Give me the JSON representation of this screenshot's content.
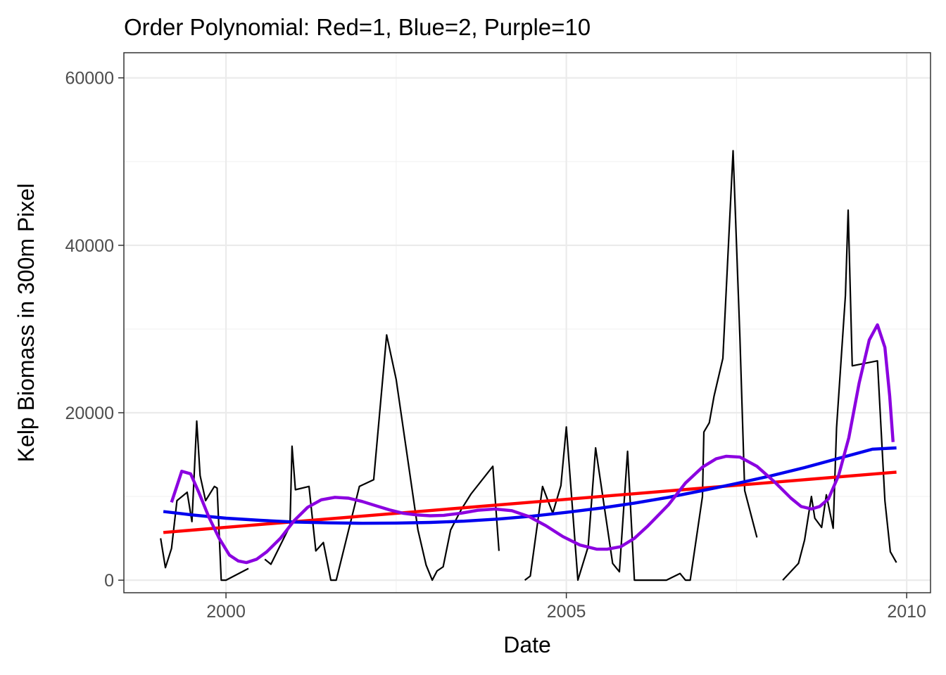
{
  "chart_data": {
    "type": "line",
    "title": "Order Polynomial: Red=1, Blue=2, Purple=10",
    "xlabel": "Date",
    "ylabel": "Kelp Biomass in 300m Pixel",
    "xlim": [
      1998.5,
      2010.35
    ],
    "ylim": [
      -1500,
      63000
    ],
    "x_ticks": [
      2000,
      2005,
      2010
    ],
    "x_tick_labels": [
      "2000",
      "2005",
      "2010"
    ],
    "y_ticks": [
      0,
      20000,
      40000,
      60000
    ],
    "y_tick_labels": [
      "0",
      "20000",
      "40000",
      "60000"
    ],
    "grid": true,
    "legend": "none",
    "series": [
      {
        "kind": "observed",
        "color": "#000000",
        "segments": [
          [
            [
              1999.04,
              5000
            ],
            [
              1999.11,
              1500
            ],
            [
              1999.2,
              3800
            ],
            [
              1999.28,
              9500
            ],
            [
              1999.43,
              10500
            ],
            [
              1999.5,
              7000
            ],
            [
              1999.57,
              19000
            ],
            [
              1999.62,
              12500
            ],
            [
              1999.7,
              9500
            ],
            [
              1999.83,
              11200
            ],
            [
              1999.87,
              11000
            ],
            [
              1999.93,
              0
            ],
            [
              2000.0,
              0
            ],
            [
              2000.33,
              1400
            ]
          ],
          [
            [
              2000.57,
              2500
            ],
            [
              2000.66,
              1900
            ],
            [
              2000.94,
              6500
            ],
            [
              2000.97,
              16000
            ],
            [
              2001.02,
              10800
            ],
            [
              2001.22,
              11200
            ],
            [
              2001.32,
              3500
            ],
            [
              2001.43,
              4500
            ],
            [
              2001.54,
              0
            ],
            [
              2001.62,
              0
            ],
            [
              2001.96,
              11200
            ],
            [
              2002.17,
              12000
            ],
            [
              2002.36,
              29300
            ],
            [
              2002.5,
              24000
            ],
            [
              2002.82,
              6000
            ],
            [
              2002.94,
              1800
            ],
            [
              2003.03,
              0
            ],
            [
              2003.1,
              1100
            ],
            [
              2003.19,
              1600
            ],
            [
              2003.3,
              6000
            ],
            [
              2003.46,
              8500
            ],
            [
              2003.6,
              10300
            ],
            [
              2003.92,
              13600
            ],
            [
              2004.01,
              3500
            ]
          ],
          [
            [
              2004.39,
              0
            ],
            [
              2004.47,
              500
            ],
            [
              2004.65,
              11200
            ],
            [
              2004.8,
              8000
            ],
            [
              2004.92,
              11300
            ],
            [
              2005.0,
              18300
            ],
            [
              2005.17,
              0
            ],
            [
              2005.32,
              4000
            ],
            [
              2005.43,
              15800
            ],
            [
              2005.68,
              2000
            ],
            [
              2005.78,
              1000
            ],
            [
              2005.9,
              15400
            ],
            [
              2006.0,
              0
            ],
            [
              2006.47,
              0
            ],
            [
              2006.67,
              800
            ],
            [
              2006.75,
              0
            ],
            [
              2006.82,
              0
            ],
            [
              2007.0,
              10000
            ],
            [
              2007.02,
              17700
            ],
            [
              2007.1,
              18800
            ],
            [
              2007.17,
              22000
            ],
            [
              2007.3,
              26500
            ],
            [
              2007.45,
              51300
            ],
            [
              2007.55,
              29000
            ],
            [
              2007.62,
              10700
            ],
            [
              2007.8,
              5100
            ]
          ],
          [
            [
              2008.18,
              0
            ],
            [
              2008.41,
              2000
            ],
            [
              2008.5,
              4800
            ],
            [
              2008.6,
              10000
            ],
            [
              2008.65,
              7400
            ],
            [
              2008.75,
              6300
            ],
            [
              2008.82,
              10200
            ],
            [
              2008.92,
              6200
            ],
            [
              2008.97,
              18200
            ],
            [
              2009.1,
              34000
            ],
            [
              2009.14,
              44200
            ],
            [
              2009.2,
              25600
            ],
            [
              2009.57,
              26200
            ],
            [
              2009.68,
              9500
            ],
            [
              2009.76,
              3400
            ],
            [
              2009.85,
              2100
            ]
          ]
        ]
      },
      {
        "kind": "fit",
        "order": 1,
        "color": "#ff0000",
        "points": [
          [
            1999.08,
            5700
          ],
          [
            2009.85,
            12900
          ]
        ]
      },
      {
        "kind": "fit",
        "order": 2,
        "color": "#0000ee",
        "points": [
          [
            1999.08,
            8200
          ],
          [
            1999.5,
            7800
          ],
          [
            2000.0,
            7400
          ],
          [
            2000.5,
            7150
          ],
          [
            2001.0,
            6950
          ],
          [
            2001.5,
            6850
          ],
          [
            2002.0,
            6800
          ],
          [
            2002.5,
            6820
          ],
          [
            2003.0,
            6900
          ],
          [
            2003.5,
            7050
          ],
          [
            2004.0,
            7300
          ],
          [
            2004.5,
            7650
          ],
          [
            2005.0,
            8100
          ],
          [
            2005.5,
            8600
          ],
          [
            2006.0,
            9200
          ],
          [
            2006.5,
            9900
          ],
          [
            2007.0,
            10700
          ],
          [
            2007.5,
            11550
          ],
          [
            2008.0,
            12450
          ],
          [
            2008.5,
            13450
          ],
          [
            2009.0,
            14550
          ],
          [
            2009.5,
            15650
          ],
          [
            2009.85,
            15800
          ]
        ]
      },
      {
        "kind": "fit",
        "order": 10,
        "color": "#8b00e0",
        "points": [
          [
            1999.2,
            9300
          ],
          [
            1999.35,
            13000
          ],
          [
            1999.48,
            12700
          ],
          [
            1999.6,
            10500
          ],
          [
            1999.75,
            7500
          ],
          [
            1999.9,
            5000
          ],
          [
            2000.05,
            3000
          ],
          [
            2000.18,
            2300
          ],
          [
            2000.3,
            2100
          ],
          [
            2000.45,
            2500
          ],
          [
            2000.6,
            3400
          ],
          [
            2000.8,
            5000
          ],
          [
            2001.0,
            7100
          ],
          [
            2001.2,
            8700
          ],
          [
            2001.4,
            9600
          ],
          [
            2001.6,
            9900
          ],
          [
            2001.8,
            9800
          ],
          [
            2002.0,
            9400
          ],
          [
            2002.2,
            8900
          ],
          [
            2002.4,
            8400
          ],
          [
            2002.6,
            8000
          ],
          [
            2002.8,
            7800
          ],
          [
            2003.0,
            7700
          ],
          [
            2003.2,
            7750
          ],
          [
            2003.45,
            8000
          ],
          [
            2003.7,
            8350
          ],
          [
            2003.95,
            8500
          ],
          [
            2004.2,
            8300
          ],
          [
            2004.45,
            7600
          ],
          [
            2004.7,
            6500
          ],
          [
            2004.95,
            5200
          ],
          [
            2005.2,
            4200
          ],
          [
            2005.45,
            3700
          ],
          [
            2005.6,
            3700
          ],
          [
            2005.8,
            4000
          ],
          [
            2006.0,
            5000
          ],
          [
            2006.2,
            6500
          ],
          [
            2006.5,
            9000
          ],
          [
            2006.75,
            11600
          ],
          [
            2007.0,
            13500
          ],
          [
            2007.2,
            14500
          ],
          [
            2007.35,
            14800
          ],
          [
            2007.55,
            14700
          ],
          [
            2007.8,
            13600
          ],
          [
            2008.05,
            11800
          ],
          [
            2008.3,
            9800
          ],
          [
            2008.45,
            8800
          ],
          [
            2008.6,
            8500
          ],
          [
            2008.72,
            8800
          ],
          [
            2008.85,
            9700
          ],
          [
            2009.0,
            12500
          ],
          [
            2009.15,
            17000
          ],
          [
            2009.3,
            23500
          ],
          [
            2009.45,
            28700
          ],
          [
            2009.57,
            30500
          ],
          [
            2009.68,
            27800
          ],
          [
            2009.75,
            22000
          ],
          [
            2009.8,
            16500
          ]
        ]
      }
    ]
  }
}
